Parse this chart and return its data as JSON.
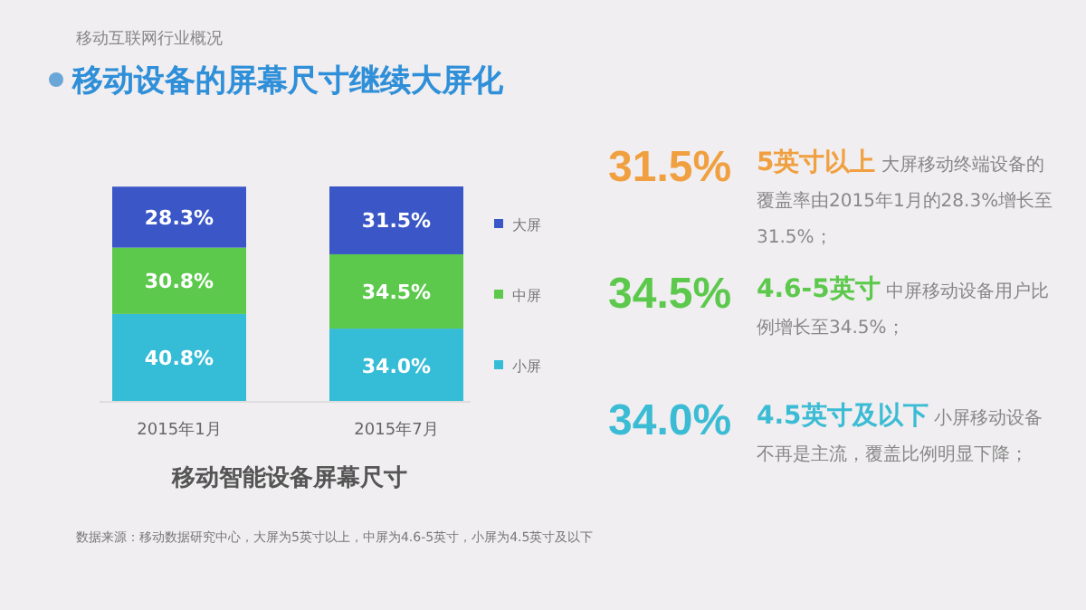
{
  "chart_data": {
    "type": "bar",
    "stacked": true,
    "legend": "right",
    "subtitle": "移动互联网行业概况",
    "title": "移动设备的屏幕尺寸继续大屏化",
    "xlabel": "移动智能设备屏幕尺寸",
    "categories": [
      "2015年1月",
      "2015年7月"
    ],
    "series": [
      {
        "name": "小屏",
        "color": "#35bcd6",
        "values": [
          40.8,
          34.0
        ],
        "value_labels": [
          "40.8%",
          "34.0%"
        ]
      },
      {
        "name": "中屏",
        "color": "#5cc94c",
        "values": [
          30.8,
          34.5
        ],
        "value_labels": [
          "30.8%",
          "34.5%"
        ]
      },
      {
        "name": "大屏",
        "color": "#3b57c7",
        "values": [
          28.3,
          31.5
        ],
        "value_labels": [
          "28.3%",
          "31.5%"
        ]
      }
    ],
    "annotations": [
      "31.5%",
      "5英寸以上",
      "大屏移动终端设备的覆盖率由2015年1月的28.3%增长至31.5%；",
      "34.5%",
      "4.6-5英寸",
      "中屏移动设备用户比例增长至34.5%；",
      "34.0%",
      "4.5英寸及以下",
      "小屏移动设备不再是主流，覆盖比例明显下降；",
      "数据来源：移动数据研究中心，大屏为5英寸以上，中屏为4.6-5英寸，小屏为4.5英寸及以下"
    ]
  }
}
